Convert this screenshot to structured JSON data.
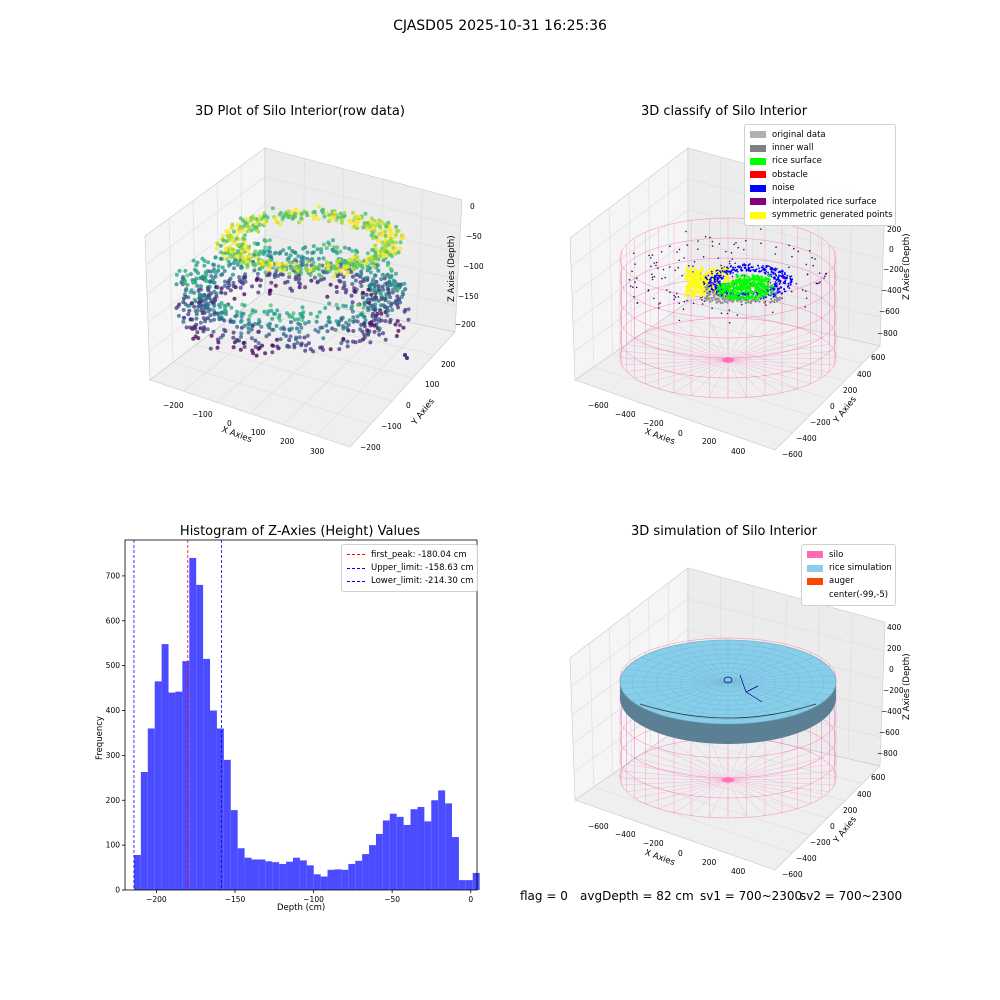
{
  "suptitle": "CJASD05 2025-10-31 16:25:36",
  "status": {
    "flag": "flag = 0",
    "avg_depth": "avgDepth = 82 cm",
    "sv1": "sv1 = 700~2300",
    "sv2": "sv2 = 700~2300"
  },
  "colors": {
    "histogram_bar": "#4b4bff",
    "peak_line": "#ff0000",
    "limit_line": "#0000ff",
    "silo": "#ff69b4",
    "rice": "#87ceeb",
    "auger": "#ff4500"
  },
  "chart_data": [
    {
      "type": "scatter",
      "title": "3D Plot of Silo Interior(row data)",
      "xlabel": "X Axies",
      "ylabel": "Y Axies",
      "zlabel": "Z Axies (Depth)",
      "x_ticks": [
        "−200",
        "−100",
        "0",
        "100",
        "200",
        "300"
      ],
      "y_ticks": [
        "200",
        "100",
        "0",
        "−100",
        "−200"
      ],
      "z_ticks": [
        "0",
        "−50",
        "−100",
        "−150",
        "−200"
      ],
      "colormap": "viridis"
    },
    {
      "type": "scatter",
      "title": "3D classify of Silo Interior",
      "xlabel": "X Axies",
      "ylabel": "Y Axies",
      "zlabel": "Z Axies (Depth)",
      "x_ticks": [
        "−600",
        "−400",
        "−200",
        "0",
        "200",
        "400"
      ],
      "y_ticks": [
        "600",
        "400",
        "200",
        "0",
        "−200",
        "−400",
        "−600"
      ],
      "z_ticks": [
        "200",
        "0",
        "−200",
        "−400",
        "−600",
        "−800"
      ],
      "legend": [
        {
          "label": "original data",
          "color": "#b0b0b0"
        },
        {
          "label": "inner wall",
          "color": "#808080"
        },
        {
          "label": "rice surface",
          "color": "#00ff00"
        },
        {
          "label": "obstacle",
          "color": "#ff0000"
        },
        {
          "label": "noise",
          "color": "#0000ff"
        },
        {
          "label": "interpolated rice surface",
          "color": "#800080"
        },
        {
          "label": "symmetric generated points",
          "color": "#ffff00"
        }
      ]
    },
    {
      "type": "bar",
      "title": "Histogram of Z-Axies (Height) Values",
      "xlabel": "Depth (cm)",
      "ylabel": "Frequency",
      "xlim": [
        -220,
        4
      ],
      "ylim": [
        0,
        780
      ],
      "x_ticks": [
        {
          "value": -200,
          "label": "−200"
        },
        {
          "value": -150,
          "label": "−150"
        },
        {
          "value": -100,
          "label": "−100"
        },
        {
          "value": -50,
          "label": "−50"
        },
        {
          "value": 0,
          "label": "0"
        }
      ],
      "y_ticks": [
        {
          "value": 0,
          "label": "0"
        },
        {
          "value": 100,
          "label": "100"
        },
        {
          "value": 200,
          "label": "200"
        },
        {
          "value": 300,
          "label": "300"
        },
        {
          "value": 400,
          "label": "400"
        },
        {
          "value": 500,
          "label": "500"
        },
        {
          "value": 600,
          "label": "600"
        },
        {
          "value": 700,
          "label": "700"
        }
      ],
      "bin_start": -214.3,
      "bin_width": 4.4,
      "values": [
        78,
        263,
        360,
        465,
        548,
        440,
        442,
        510,
        740,
        680,
        515,
        400,
        360,
        290,
        178,
        93,
        72,
        68,
        68,
        64,
        62,
        58,
        63,
        72,
        66,
        55,
        35,
        30,
        45,
        46,
        45,
        58,
        65,
        80,
        100,
        125,
        155,
        170,
        163,
        145,
        180,
        185,
        153,
        200,
        222,
        193,
        118,
        22,
        22,
        38
      ],
      "vlines": [
        {
          "x": -180.04,
          "color": "#ff0000",
          "label": "first_peak: -180.04 cm"
        },
        {
          "x": -158.63,
          "color": "#0000ff",
          "label": "Upper_limit: -158.63 cm"
        },
        {
          "x": -214.3,
          "color": "#0000ff",
          "label": "Lower_limit: -214.30 cm"
        }
      ],
      "legend_position": "top-right"
    },
    {
      "type": "scatter",
      "title": "3D simulation of Silo Interior",
      "xlabel": "X Axies",
      "ylabel": "Y Axies",
      "zlabel": "Z Axies (Depth)",
      "x_ticks": [
        "−600",
        "−400",
        "−200",
        "0",
        "200",
        "400"
      ],
      "y_ticks": [
        "600",
        "400",
        "200",
        "0",
        "−200",
        "−400",
        "−600"
      ],
      "z_ticks": [
        "400",
        "200",
        "0",
        "−200",
        "−400",
        "−600",
        "−800"
      ],
      "legend": [
        {
          "label": "silo",
          "color": "#ff69b4"
        },
        {
          "label": "rice simulation",
          "color": "#87ceeb"
        },
        {
          "label": "auger",
          "color": "#ff4500"
        },
        {
          "label": "center(-99,-5)",
          "color": ""
        }
      ]
    }
  ]
}
